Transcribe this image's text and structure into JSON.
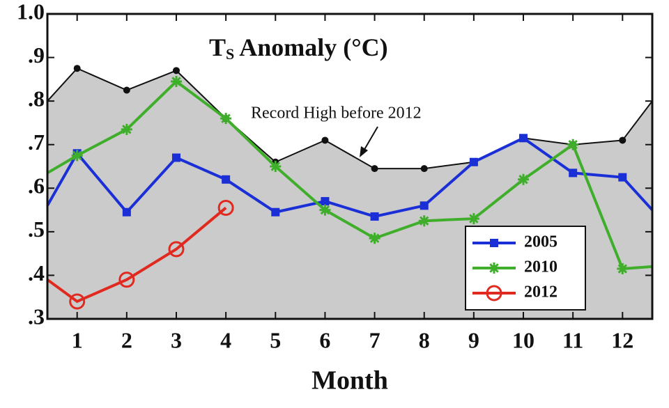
{
  "chart_data": {
    "type": "line",
    "title": {
      "main": "T",
      "subscript": "S",
      "rest": " Anomaly (°C)"
    },
    "x_label": "Month",
    "annotation": "Record High before 2012",
    "x": [
      0.4,
      1,
      2,
      3,
      4,
      5,
      6,
      7,
      8,
      9,
      10,
      11,
      12,
      12.6
    ],
    "xlim": [
      0.4,
      12.6
    ],
    "xticks": [
      1,
      2,
      3,
      4,
      5,
      6,
      7,
      8,
      9,
      10,
      11,
      12
    ],
    "ylim": [
      0.3,
      1.0
    ],
    "yticks": [
      {
        "value": 1.0,
        "label": "1.0"
      },
      {
        "value": 0.9,
        "label": ".9"
      },
      {
        "value": 0.8,
        "label": ".8"
      },
      {
        "value": 0.7,
        "label": ".7"
      },
      {
        "value": 0.6,
        "label": ".6"
      },
      {
        "value": 0.5,
        "label": ".5"
      },
      {
        "value": 0.4,
        "label": ".4"
      },
      {
        "value": 0.3,
        "label": ".3"
      }
    ],
    "grid": false,
    "legend": "lower right",
    "series": [
      {
        "name": "Record High before 2012",
        "in_legend": false,
        "color": "#111111",
        "fill": "#cbcbcb",
        "marker": "dot",
        "values": [
          0.8,
          0.875,
          0.825,
          0.87,
          0.76,
          0.66,
          0.71,
          0.645,
          0.645,
          0.66,
          0.715,
          0.7,
          0.71,
          0.8
        ]
      },
      {
        "name": "2005",
        "color": "#1a2fd6",
        "marker": "square",
        "values": [
          0.56,
          0.68,
          0.545,
          0.67,
          0.62,
          0.545,
          0.57,
          0.535,
          0.56,
          0.66,
          0.715,
          0.635,
          0.625,
          0.55
        ]
      },
      {
        "name": "2010",
        "color": "#3fae2a",
        "marker": "star",
        "values": [
          0.635,
          0.675,
          0.735,
          0.845,
          0.76,
          0.65,
          0.55,
          0.485,
          0.525,
          0.53,
          0.62,
          0.7,
          0.415,
          0.42
        ]
      },
      {
        "name": "2012",
        "color": "#e02a20",
        "marker": "circle",
        "values": [
          0.39,
          0.34,
          0.39,
          0.46,
          0.555,
          null,
          null,
          null,
          null,
          null,
          null,
          null,
          null,
          null
        ]
      }
    ]
  }
}
